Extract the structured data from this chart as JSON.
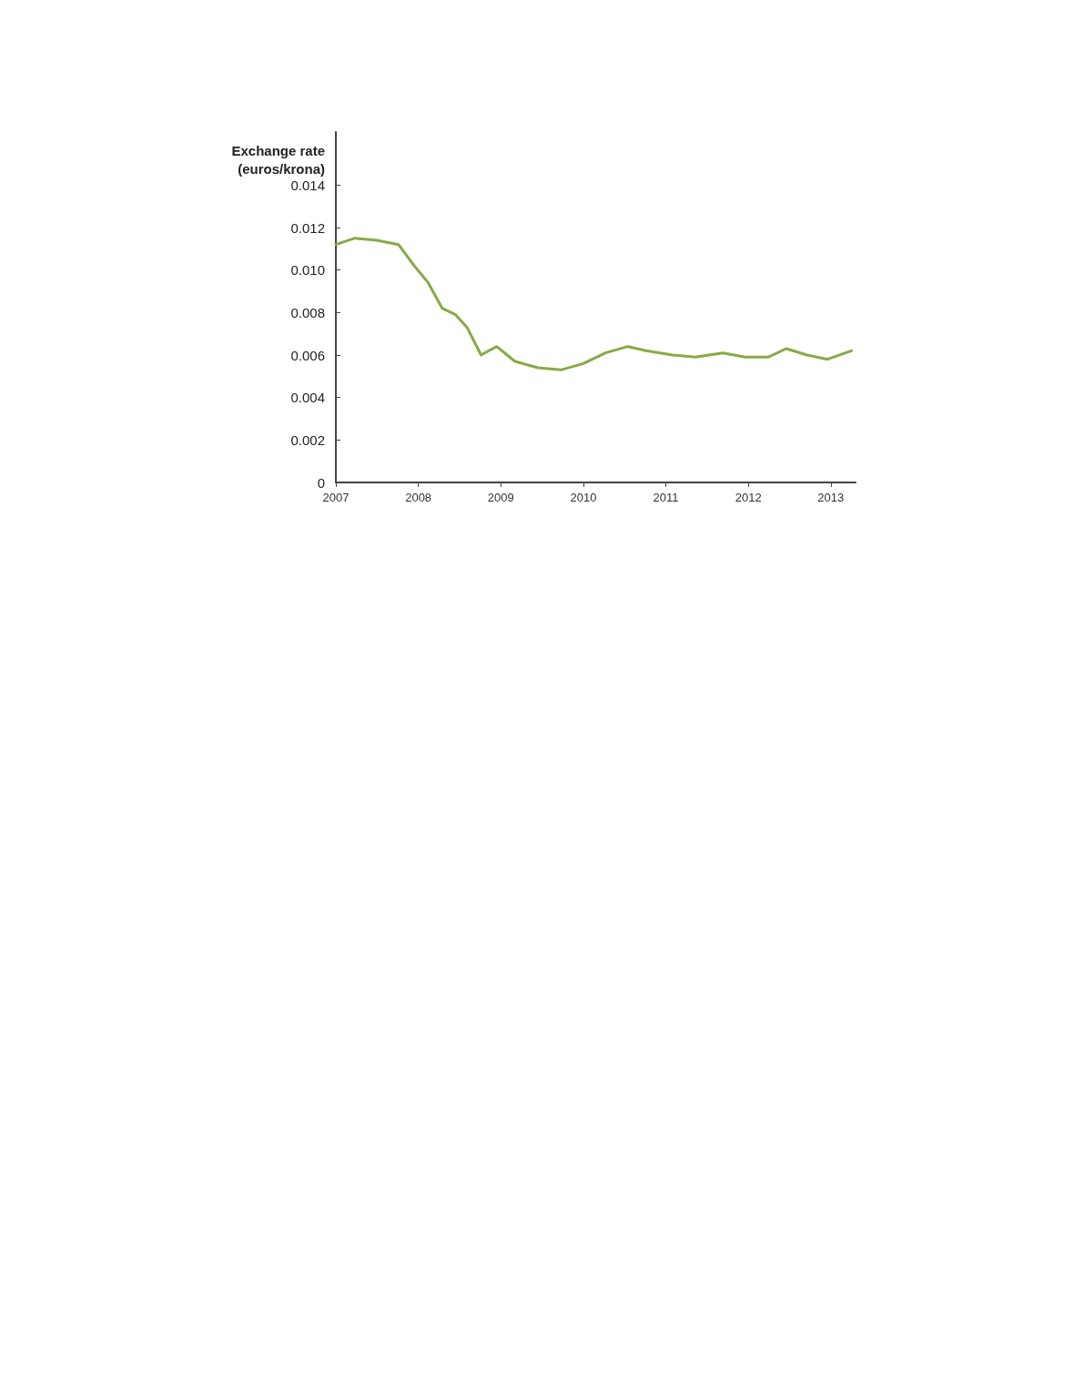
{
  "chart_data": {
    "type": "line",
    "ylabel": "Exchange rate\n(euros/krona)",
    "x": [
      2007.0,
      2007.23,
      2007.5,
      2007.76,
      2007.95,
      2008.12,
      2008.29,
      2008.45,
      2008.59,
      2008.76,
      2008.95,
      2009.17,
      2009.45,
      2009.73,
      2010.0,
      2010.27,
      2010.54,
      2010.76,
      2011.08,
      2011.36,
      2011.69,
      2011.96,
      2012.24,
      2012.46,
      2012.71,
      2012.96,
      2013.25
    ],
    "series": [
      {
        "color": "#86ab45",
        "values": [
          0.0112,
          0.0115,
          0.0114,
          0.0112,
          0.0102,
          0.0094,
          0.0082,
          0.0079,
          0.0073,
          0.006,
          0.0064,
          0.0057,
          0.0054,
          0.0053,
          0.0056,
          0.0061,
          0.0064,
          0.0062,
          0.006,
          0.0059,
          0.0061,
          0.0059,
          0.0059,
          0.0063,
          0.006,
          0.0058,
          0.0062
        ]
      }
    ],
    "xlim": [
      2007,
      2013.3
    ],
    "xticks": [
      2007,
      2008,
      2009,
      2010,
      2011,
      2012,
      2013
    ],
    "ylim": [
      0,
      0.0165
    ],
    "yticks": [
      0,
      0.002,
      0.004,
      0.006,
      0.008,
      {
        "value": 0.01,
        "label": "0.010"
      },
      0.012,
      0.014
    ],
    "grid": false,
    "marker": "none",
    "line_style": "solid"
  }
}
